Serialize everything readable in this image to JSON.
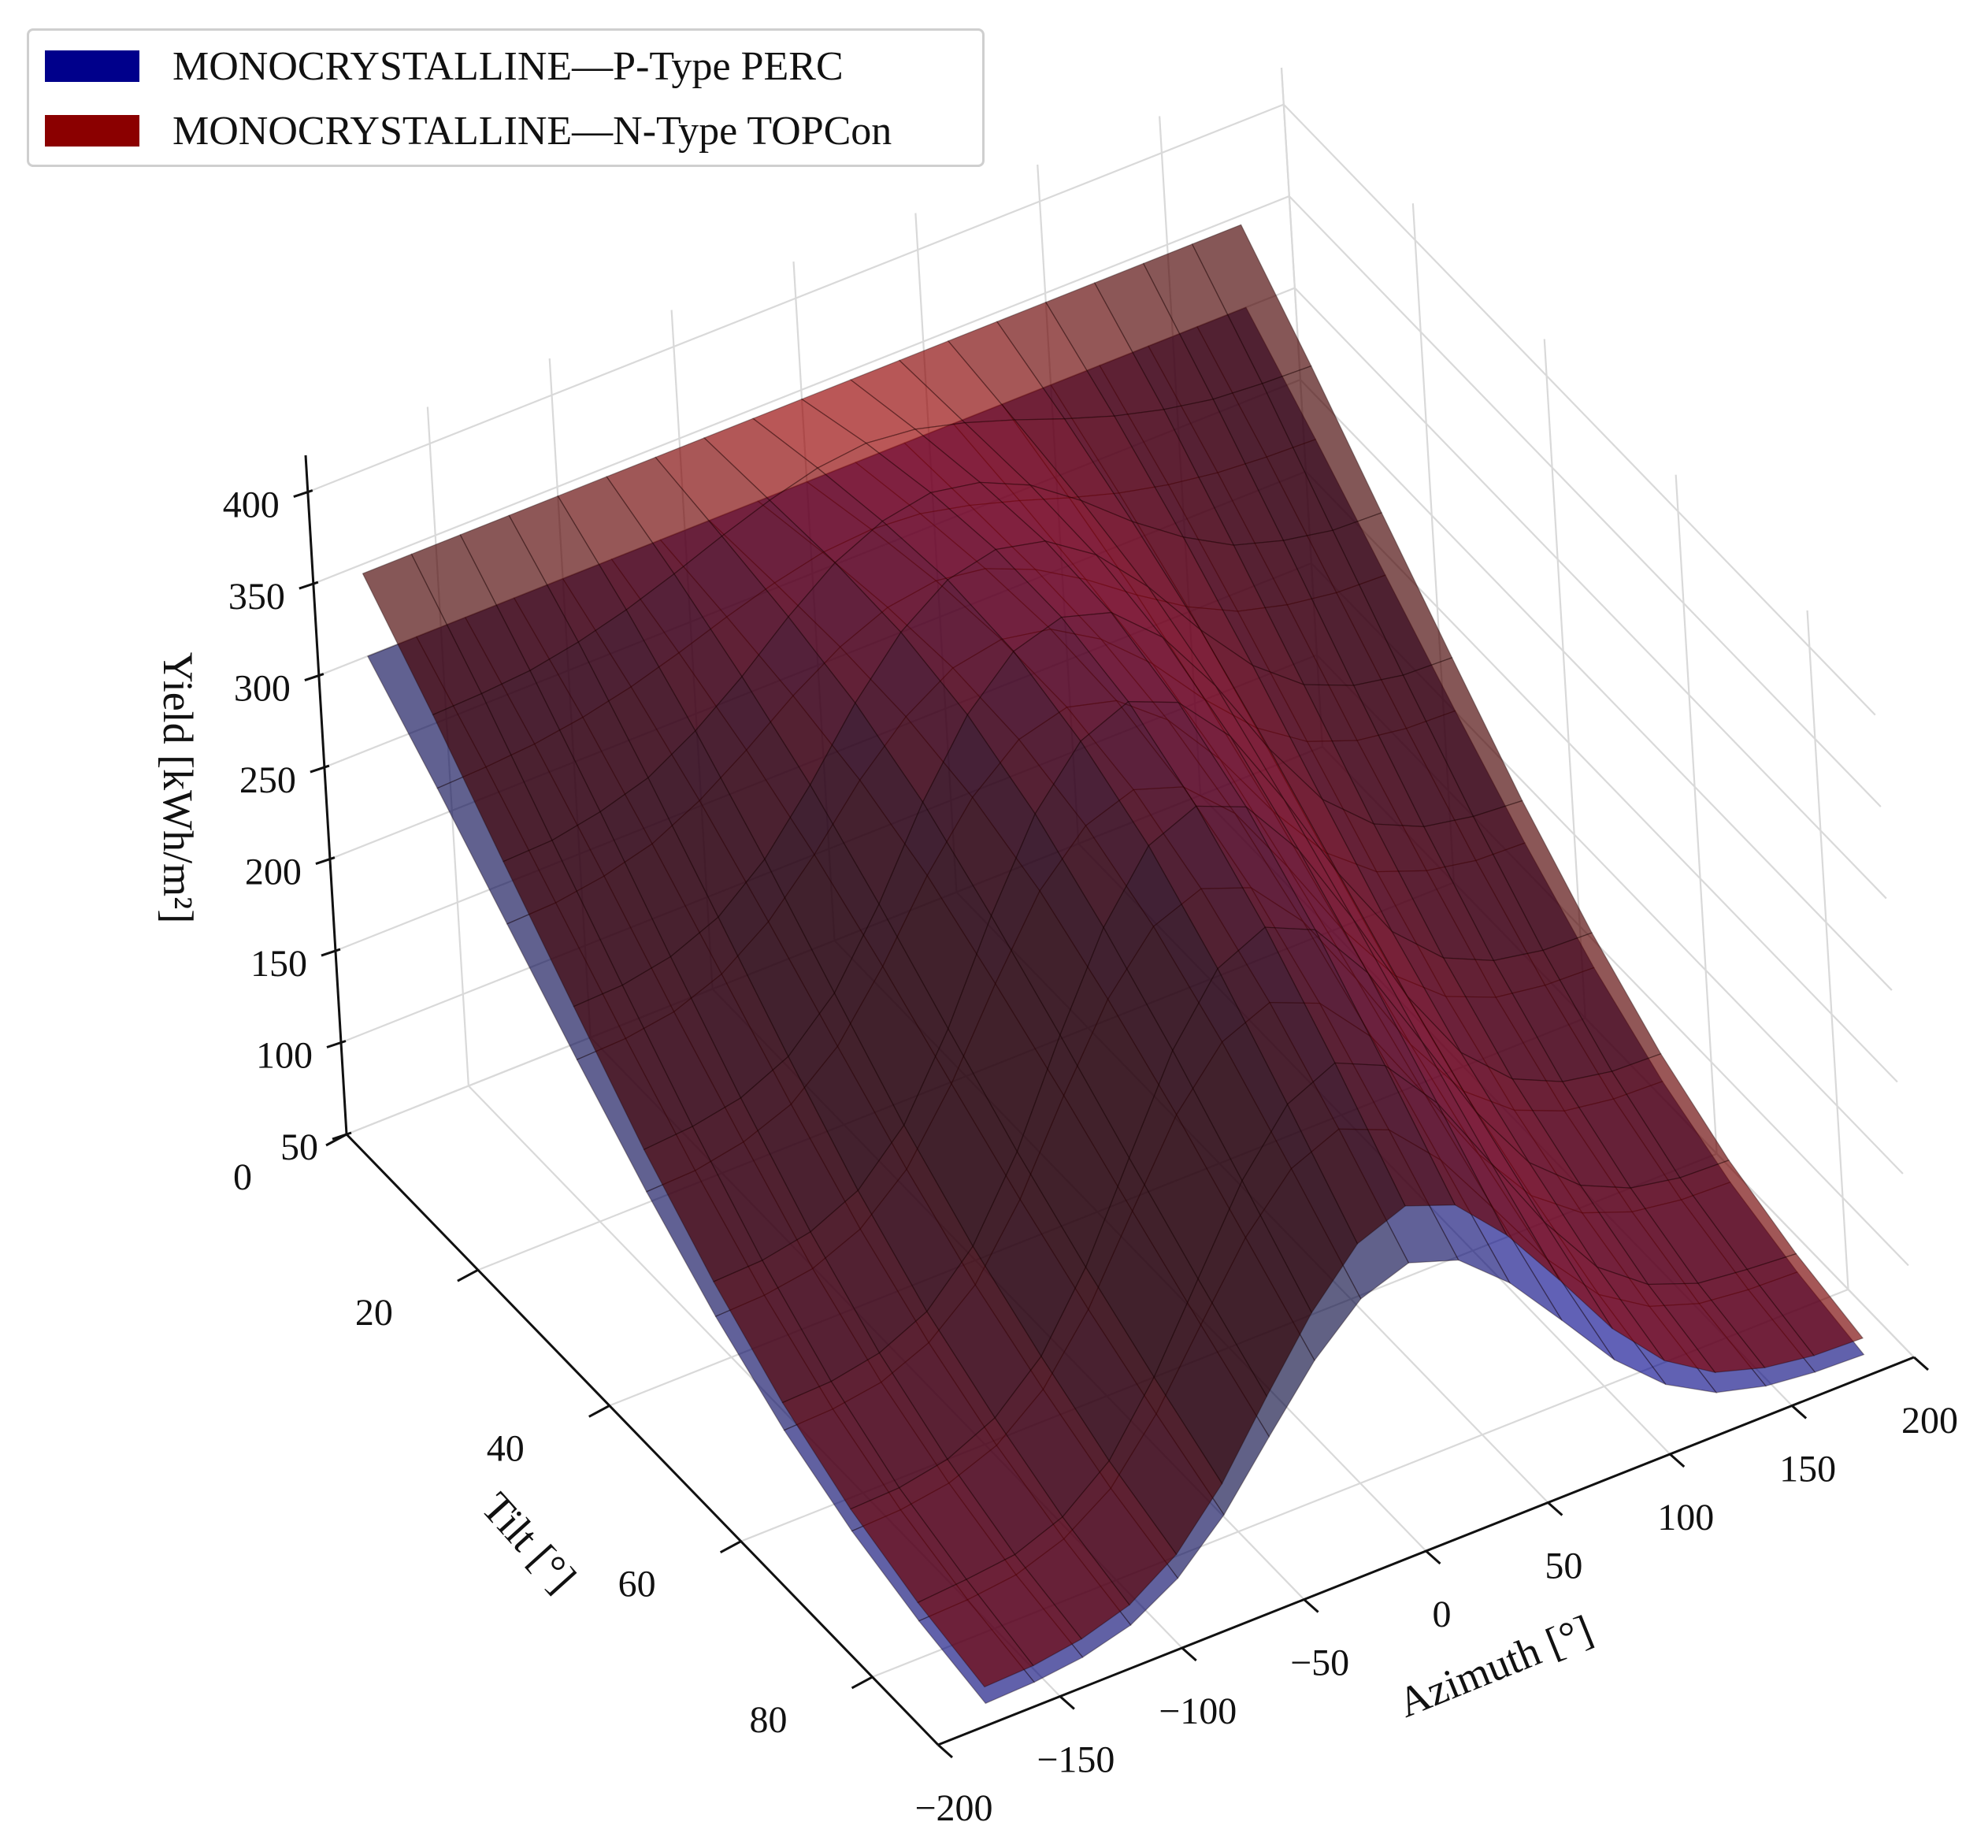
{
  "chart_data": {
    "type": "surface3d",
    "title": "",
    "xlabel": "Azimuth [°]",
    "ylabel": "Tilt [°]",
    "zlabel": "Yield [kWh/m²]",
    "xlim": [
      -200,
      200
    ],
    "ylim": [
      0,
      90
    ],
    "zlim": [
      50,
      420
    ],
    "x_ticks": [
      "−200",
      "−150",
      "−100",
      "−50",
      "0",
      "50",
      "100",
      "150",
      "200"
    ],
    "y_ticks": [
      "0",
      "20",
      "40",
      "60",
      "80"
    ],
    "z_ticks": [
      "50",
      "100",
      "150",
      "200",
      "250",
      "300",
      "350",
      "400"
    ],
    "grid": true,
    "legend_position": "top-left",
    "azimuth": [
      -180,
      -160,
      -140,
      -120,
      -100,
      -80,
      -60,
      -40,
      -20,
      0,
      20,
      40,
      60,
      80,
      100,
      120,
      140,
      160,
      180
    ],
    "tilt": [
      0,
      10,
      20,
      30,
      40,
      50,
      60,
      70,
      80,
      90
    ],
    "series": [
      {
        "name": "MONOCRYSTALLINE—P-Type PERC",
        "color": "#00008b",
        "values_by_tilt": [
          [
            300,
            300,
            300,
            300,
            300,
            300,
            300,
            300,
            300,
            300,
            300,
            300,
            300,
            300,
            300,
            300,
            300,
            300,
            300
          ],
          [
            265,
            266,
            268,
            272,
            278,
            286,
            295,
            303,
            309,
            311,
            309,
            303,
            295,
            286,
            278,
            272,
            268,
            266,
            265
          ],
          [
            228,
            229,
            233,
            240,
            253,
            270,
            289,
            305,
            316,
            320,
            316,
            305,
            289,
            270,
            253,
            240,
            233,
            229,
            228
          ],
          [
            191,
            192,
            196,
            206,
            224,
            250,
            280,
            304,
            320,
            325,
            320,
            304,
            280,
            250,
            224,
            206,
            196,
            192,
            191
          ],
          [
            156,
            157,
            162,
            172,
            193,
            226,
            265,
            297,
            318,
            325,
            318,
            297,
            265,
            226,
            193,
            172,
            162,
            157,
            156
          ],
          [
            125,
            126,
            130,
            141,
            163,
            199,
            243,
            283,
            308,
            317,
            308,
            283,
            243,
            199,
            163,
            141,
            130,
            126,
            125
          ],
          [
            100,
            101,
            105,
            116,
            137,
            173,
            219,
            261,
            290,
            300,
            290,
            261,
            219,
            173,
            137,
            116,
            105,
            101,
            100
          ],
          [
            82,
            83,
            87,
            97,
            117,
            150,
            193,
            235,
            264,
            275,
            264,
            235,
            193,
            150,
            117,
            97,
            87,
            83,
            82
          ],
          [
            70,
            71,
            74,
            83,
            100,
            130,
            168,
            205,
            232,
            243,
            232,
            205,
            168,
            130,
            100,
            83,
            74,
            71,
            70
          ],
          [
            62,
            63,
            66,
            73,
            88,
            112,
            144,
            175,
            198,
            207,
            198,
            175,
            144,
            112,
            88,
            73,
            66,
            63,
            62
          ]
        ]
      },
      {
        "name": "MONOCRYSTALLINE—N-Type TOPCon",
        "color": "#8b0000",
        "values_by_tilt": [
          [
            345,
            345,
            345,
            345,
            345,
            345,
            345,
            345,
            345,
            345,
            345,
            345,
            345,
            345,
            345,
            345,
            345,
            345,
            345
          ],
          [
            305,
            306,
            308,
            313,
            320,
            329,
            339,
            348,
            355,
            358,
            355,
            348,
            339,
            329,
            320,
            313,
            308,
            306,
            305
          ],
          [
            262,
            263,
            268,
            276,
            291,
            310,
            332,
            351,
            363,
            368,
            363,
            351,
            332,
            310,
            291,
            276,
            268,
            263,
            262
          ],
          [
            220,
            221,
            226,
            237,
            258,
            288,
            322,
            350,
            368,
            374,
            368,
            350,
            322,
            288,
            258,
            237,
            226,
            221,
            220
          ],
          [
            179,
            181,
            186,
            198,
            222,
            260,
            305,
            342,
            366,
            374,
            366,
            342,
            305,
            260,
            222,
            198,
            186,
            181,
            179
          ],
          [
            144,
            145,
            150,
            162,
            187,
            229,
            280,
            325,
            354,
            365,
            354,
            325,
            280,
            229,
            187,
            162,
            150,
            145,
            144
          ],
          [
            115,
            116,
            121,
            133,
            158,
            199,
            252,
            300,
            334,
            345,
            334,
            300,
            252,
            199,
            158,
            133,
            121,
            116,
            115
          ],
          [
            94,
            95,
            100,
            112,
            135,
            173,
            222,
            270,
            304,
            316,
            304,
            270,
            222,
            173,
            135,
            112,
            100,
            95,
            94
          ],
          [
            80,
            82,
            85,
            95,
            115,
            150,
            193,
            236,
            267,
            279,
            267,
            236,
            193,
            150,
            115,
            95,
            85,
            82,
            80
          ],
          [
            71,
            72,
            76,
            84,
            101,
            129,
            166,
            201,
            228,
            238,
            228,
            201,
            166,
            129,
            101,
            84,
            76,
            72,
            71
          ]
        ]
      }
    ]
  }
}
